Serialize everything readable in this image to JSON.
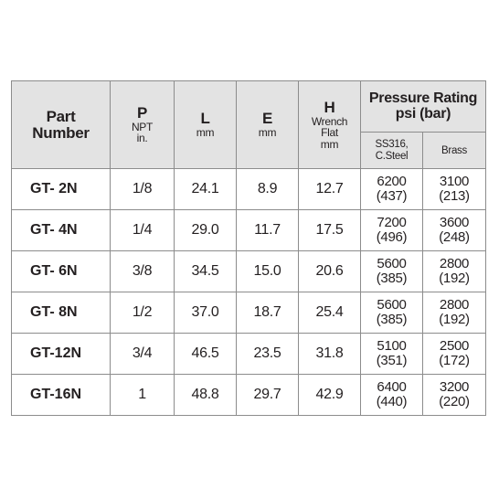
{
  "headers": {
    "part": [
      "Part",
      "Number"
    ],
    "p": {
      "label": "P",
      "sub1": "NPT",
      "sub2": "in."
    },
    "l": {
      "label": "L",
      "unit": "mm"
    },
    "e": {
      "label": "E",
      "unit": "mm"
    },
    "h": {
      "label": "H",
      "sub1": "Wrench",
      "sub2": "Flat",
      "unit": "mm"
    },
    "pressure": {
      "line1": "Pressure Rating",
      "line2": "psi (bar)"
    },
    "ss": [
      "SS316,",
      "C.Steel"
    ],
    "brass": "Brass"
  },
  "rows": [
    {
      "part": "GT- 2N",
      "p": "1/8",
      "l": "24.1",
      "e": "8.9",
      "h": "12.7",
      "ss_psi": "6200",
      "ss_bar": "(437)",
      "brass_psi": "3100",
      "brass_bar": "(213)"
    },
    {
      "part": "GT- 4N",
      "p": "1/4",
      "l": "29.0",
      "e": "11.7",
      "h": "17.5",
      "ss_psi": "7200",
      "ss_bar": "(496)",
      "brass_psi": "3600",
      "brass_bar": "(248)"
    },
    {
      "part": "GT- 6N",
      "p": "3/8",
      "l": "34.5",
      "e": "15.0",
      "h": "20.6",
      "ss_psi": "5600",
      "ss_bar": "(385)",
      "brass_psi": "2800",
      "brass_bar": "(192)"
    },
    {
      "part": "GT- 8N",
      "p": "1/2",
      "l": "37.0",
      "e": "18.7",
      "h": "25.4",
      "ss_psi": "5600",
      "ss_bar": "(385)",
      "brass_psi": "2800",
      "brass_bar": "(192)"
    },
    {
      "part": "GT-12N",
      "p": "3/4",
      "l": "46.5",
      "e": "23.5",
      "h": "31.8",
      "ss_psi": "5100",
      "ss_bar": "(351)",
      "brass_psi": "2500",
      "brass_bar": "(172)"
    },
    {
      "part": "GT-16N",
      "p": "1",
      "l": "48.8",
      "e": "29.7",
      "h": "42.9",
      "ss_psi": "6400",
      "ss_bar": "(440)",
      "brass_psi": "3200",
      "brass_bar": "(220)"
    }
  ]
}
